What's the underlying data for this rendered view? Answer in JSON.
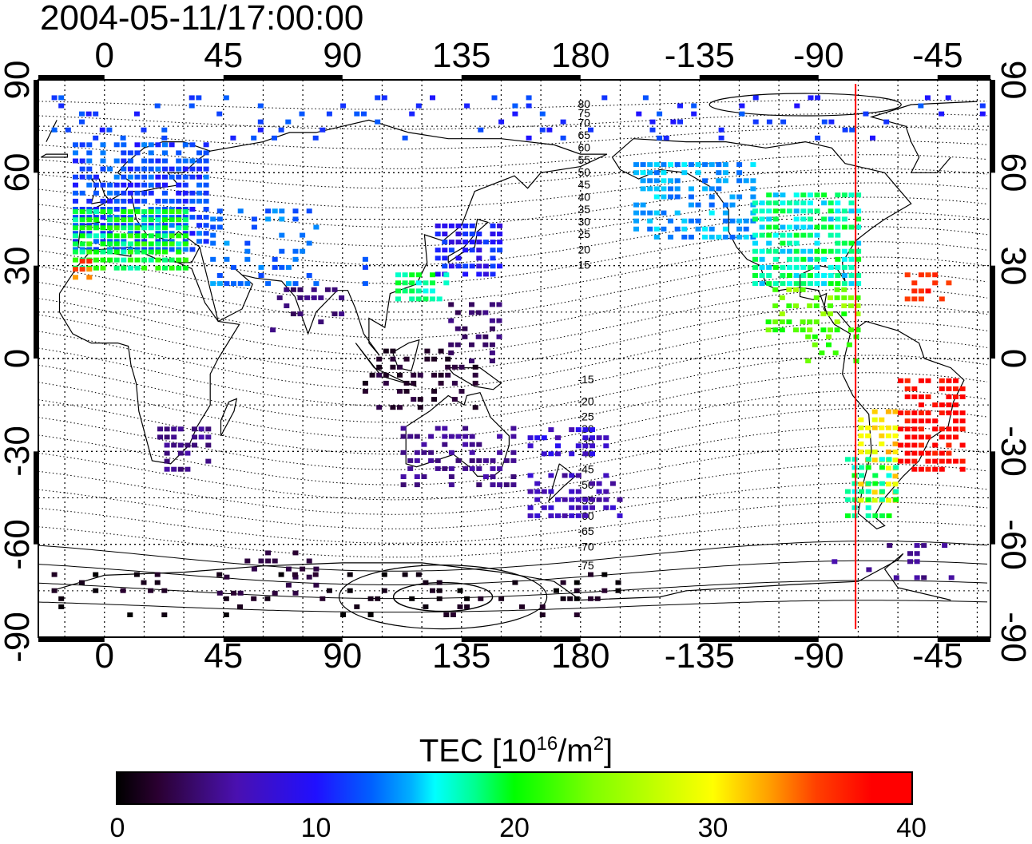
{
  "title": "2004-05-11/17:00:00",
  "map": {
    "lon_tick_labels": [
      "0",
      "45",
      "90",
      "135",
      "180",
      "-135",
      "-90",
      "-45"
    ],
    "lat_tick_labels": [
      "90",
      "60",
      "30",
      "0",
      "-30",
      "-60",
      "-90"
    ],
    "lat_range": [
      -90,
      90
    ],
    "grid": "dotted",
    "terminator_lon": -76,
    "terminator_color": "#ff0000",
    "contour_labels": [
      "80",
      "75",
      "70",
      "65",
      "60",
      "55",
      "50",
      "45",
      "40",
      "35",
      "30",
      "25",
      "20",
      "15",
      "-15",
      "-20",
      "-25",
      "-30",
      "-35",
      "-40",
      "-45",
      "-50",
      "-55",
      "-60",
      "-65",
      "-70",
      "-75"
    ]
  },
  "colorbar": {
    "title": "TEC  [10",
    "title_exp1": "16",
    "title_mid": "/m",
    "title_exp2": "2",
    "title_end": "]",
    "ticks": [
      "0",
      "10",
      "20",
      "30",
      "40"
    ],
    "range": [
      0,
      40
    ]
  }
}
